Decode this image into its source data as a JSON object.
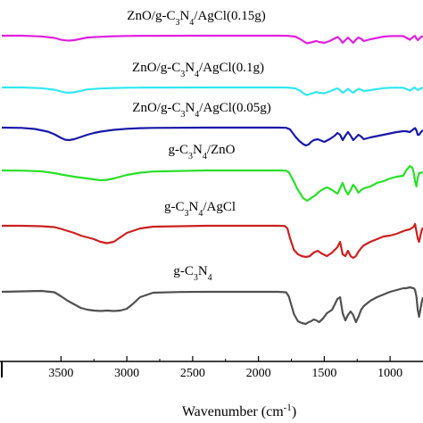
{
  "chart_data": {
    "type": "line",
    "xlabel": "Wavenumber (cm",
    "xlabel_sup": "-1",
    "xlabel_suffix": ")",
    "xlim": [
      3950,
      750
    ],
    "x_reversed": true,
    "x_ticks": [
      3500,
      3000,
      2500,
      2000,
      1500,
      1000
    ],
    "x_tick_labels": [
      "3500",
      "3000",
      "2500",
      "2000",
      "1500",
      "1000"
    ],
    "y_axis": "hidden",
    "grid": false,
    "legend": "none",
    "series": [
      {
        "label_parts": [
          {
            "t": "ZnO/g-C",
            "s": "n"
          },
          {
            "t": "3",
            "s": "sub"
          },
          {
            "t": "N",
            "s": "n"
          },
          {
            "t": "4",
            "s": "sub"
          },
          {
            "t": "/AgCl(0.15g)",
            "s": "n"
          }
        ],
        "color": "#e020e0",
        "offset": 40,
        "x": [
          3950,
          3800,
          3650,
          3550,
          3500,
          3470,
          3440,
          3400,
          3350,
          3300,
          3200,
          3100,
          3000,
          2900,
          2800,
          2400,
          2000,
          1850,
          1780,
          1720,
          1680,
          1650,
          1630,
          1600,
          1560,
          1540,
          1500,
          1460,
          1420,
          1400,
          1380,
          1360,
          1340,
          1320,
          1300,
          1280,
          1260,
          1240,
          1220,
          1200,
          1150,
          1100,
          1050,
          1000,
          950,
          900,
          880,
          850,
          820,
          810,
          800,
          790,
          780,
          760,
          750
        ],
        "values": [
          0,
          0,
          0.8,
          2.5,
          4.5,
          5.2,
          5.5,
          5.0,
          3.5,
          2.0,
          1.2,
          0.6,
          0.3,
          0.15,
          0.1,
          0,
          0,
          0,
          0.1,
          1.0,
          4.0,
          7.0,
          8.5,
          7.5,
          6.0,
          7.0,
          8.0,
          6.0,
          3.0,
          1.5,
          4.0,
          8.0,
          5.0,
          2.0,
          5.0,
          8.0,
          4.5,
          2.0,
          3.5,
          6.0,
          4.0,
          2.5,
          1.0,
          0.5,
          0.3,
          0.5,
          2.0,
          4.5,
          0.8,
          0.3,
          3.0,
          5.0,
          3.5,
          1.0,
          0.8
        ]
      },
      {
        "label_parts": [
          {
            "t": "ZnO/g-C",
            "s": "n"
          },
          {
            "t": "3",
            "s": "sub"
          },
          {
            "t": "N",
            "s": "n"
          },
          {
            "t": "4",
            "s": "sub"
          },
          {
            "t": "/AgCl(0.1g)",
            "s": "n"
          }
        ],
        "color": "#30e8f0",
        "offset": 98,
        "x": [
          3950,
          3800,
          3650,
          3550,
          3500,
          3470,
          3440,
          3400,
          3350,
          3300,
          3200,
          3100,
          3000,
          2900,
          2800,
          2400,
          2000,
          1850,
          1780,
          1720,
          1680,
          1650,
          1630,
          1600,
          1560,
          1540,
          1500,
          1460,
          1420,
          1400,
          1380,
          1360,
          1340,
          1320,
          1300,
          1280,
          1260,
          1240,
          1220,
          1200,
          1150,
          1100,
          1050,
          1000,
          950,
          900,
          880,
          850,
          820,
          810,
          800,
          790,
          780,
          760,
          750
        ],
        "values": [
          0,
          0,
          0.8,
          2.5,
          4.5,
          5.6,
          5.9,
          5.4,
          3.8,
          2.2,
          1.2,
          0.6,
          0.3,
          0.15,
          0.1,
          0,
          0,
          0,
          0.1,
          1.0,
          4.0,
          7.5,
          8.5,
          7.0,
          5.0,
          6.0,
          6.5,
          4.5,
          2.0,
          1.0,
          3.0,
          6.0,
          4.0,
          1.5,
          4.0,
          6.0,
          3.5,
          1.5,
          2.5,
          4.0,
          3.0,
          1.8,
          0.8,
          0.4,
          0.2,
          0.4,
          1.5,
          3.5,
          0.6,
          0.2,
          2.0,
          3.0,
          2.0,
          0.6,
          0.5
        ]
      },
      {
        "label_parts": [
          {
            "t": "ZnO/g-C",
            "s": "n"
          },
          {
            "t": "3",
            "s": "sub"
          },
          {
            "t": "N",
            "s": "n"
          },
          {
            "t": "4",
            "s": "sub"
          },
          {
            "t": "/AgCl(0.05g)",
            "s": "n"
          }
        ],
        "color": "#1818a8",
        "offset": 143,
        "x": [
          3950,
          3800,
          3700,
          3600,
          3550,
          3500,
          3470,
          3440,
          3400,
          3350,
          3300,
          3250,
          3200,
          3100,
          3000,
          2900,
          2800,
          2400,
          2000,
          1850,
          1790,
          1760,
          1720,
          1690,
          1660,
          1640,
          1620,
          1600,
          1580,
          1550,
          1500,
          1460,
          1420,
          1400,
          1380,
          1360,
          1340,
          1320,
          1300,
          1280,
          1260,
          1240,
          1220,
          1200,
          1150,
          1100,
          1050,
          1000,
          950,
          900,
          880,
          850,
          820,
          810,
          800,
          790,
          780,
          760,
          750
        ],
        "values": [
          0,
          0.3,
          1.5,
          4.5,
          7.5,
          11.5,
          13.5,
          14.0,
          13.0,
          10.5,
          8.0,
          6.0,
          4.5,
          2.5,
          1.3,
          0.6,
          0.3,
          0,
          0,
          0,
          0.2,
          2.0,
          10.0,
          15.0,
          18.5,
          20.0,
          19.0,
          16.0,
          14.0,
          13.0,
          16.0,
          13.0,
          9.0,
          6.0,
          8.0,
          14.0,
          9.0,
          5.0,
          9.0,
          14.0,
          11.0,
          8.0,
          10.0,
          13.0,
          11.0,
          9.5,
          8.0,
          6.5,
          5.0,
          4.0,
          4.0,
          5.0,
          1.5,
          0.5,
          3.0,
          8.0,
          8.0,
          4.0,
          3.0
        ]
      },
      {
        "label_parts": [
          {
            "t": "g-C",
            "s": "n"
          },
          {
            "t": "3",
            "s": "sub"
          },
          {
            "t": "N",
            "s": "n"
          },
          {
            "t": "4",
            "s": "sub"
          },
          {
            "t": "/ZnO",
            "s": "n"
          }
        ],
        "color": "#28e028",
        "offset": 191,
        "x": [
          3950,
          3800,
          3650,
          3550,
          3500,
          3400,
          3300,
          3250,
          3200,
          3150,
          3100,
          3050,
          3000,
          2900,
          2800,
          2400,
          2000,
          1850,
          1790,
          1770,
          1740,
          1700,
          1660,
          1630,
          1600,
          1570,
          1540,
          1510,
          1480,
          1450,
          1420,
          1400,
          1380,
          1360,
          1340,
          1320,
          1300,
          1280,
          1260,
          1240,
          1220,
          1200,
          1150,
          1100,
          1050,
          1000,
          950,
          900,
          880,
          850,
          830,
          820,
          810,
          800,
          790,
          780,
          760,
          750
        ],
        "values": [
          0,
          0.2,
          1.0,
          3.0,
          4.5,
          7.0,
          9.0,
          10.0,
          11.0,
          10.5,
          9.0,
          7.0,
          5.0,
          2.5,
          1.2,
          0,
          0,
          0,
          0.2,
          2.0,
          10.0,
          22.0,
          31.0,
          34.0,
          31.0,
          28.0,
          24.0,
          21.0,
          19.0,
          21.0,
          24.0,
          26.0,
          20.0,
          14.0,
          22.0,
          27.0,
          22.0,
          16.0,
          20.0,
          25.0,
          22.0,
          20.0,
          18.0,
          14.0,
          12.0,
          9.0,
          7.0,
          6.0,
          0.5,
          -5.0,
          -3.0,
          3.0,
          12.0,
          18.0,
          8.0,
          3.0,
          2.5,
          2.0
        ]
      },
      {
        "label_parts": [
          {
            "t": "g-C",
            "s": "n"
          },
          {
            "t": "3",
            "s": "sub"
          },
          {
            "t": "N",
            "s": "n"
          },
          {
            "t": "4",
            "s": "sub"
          },
          {
            "t": "/AgCl",
            "s": "n"
          }
        ],
        "color": "#cc2020",
        "offset": 253,
        "x": [
          3950,
          3800,
          3650,
          3550,
          3500,
          3400,
          3350,
          3300,
          3250,
          3200,
          3150,
          3100,
          3050,
          3000,
          2900,
          2800,
          2400,
          2000,
          1850,
          1800,
          1780,
          1760,
          1730,
          1700,
          1670,
          1640,
          1610,
          1580,
          1550,
          1520,
          1480,
          1440,
          1400,
          1380,
          1360,
          1340,
          1320,
          1300,
          1280,
          1260,
          1240,
          1220,
          1200,
          1150,
          1100,
          1050,
          1000,
          950,
          900,
          880,
          850,
          820,
          810,
          800,
          790,
          780,
          760,
          750
        ],
        "values": [
          0,
          0,
          0.5,
          1.5,
          3.5,
          8.0,
          11.0,
          13.0,
          15.0,
          18.0,
          19.5,
          18.0,
          13.0,
          8.0,
          3.0,
          1.0,
          0,
          0,
          0,
          0.2,
          3.0,
          14.0,
          27.0,
          32.0,
          34.0,
          35.0,
          34.0,
          30.0,
          28.0,
          31.0,
          34.0,
          30.0,
          24.0,
          18.0,
          32.0,
          34.0,
          28.0,
          34.0,
          36.0,
          34.0,
          29.0,
          25.0,
          22.0,
          18.0,
          15.0,
          12.0,
          11.0,
          9.0,
          6.0,
          5.0,
          4.0,
          1.0,
          -2.0,
          6.0,
          14.0,
          18.0,
          5.0,
          2.0
        ]
      },
      {
        "label_parts": [
          {
            "t": "g-C",
            "s": "n"
          },
          {
            "t": "3",
            "s": "sub"
          },
          {
            "t": "N",
            "s": "n"
          },
          {
            "t": "4",
            "s": "sub"
          }
        ],
        "color": "#505050",
        "offset": 327,
        "x": [
          3950,
          3800,
          3650,
          3550,
          3500,
          3450,
          3400,
          3350,
          3300,
          3250,
          3200,
          3150,
          3100,
          3050,
          3000,
          2950,
          2900,
          2800,
          2600,
          2400,
          2000,
          1850,
          1790,
          1770,
          1750,
          1730,
          1700,
          1670,
          1640,
          1620,
          1600,
          1580,
          1560,
          1540,
          1510,
          1480,
          1440,
          1420,
          1400,
          1380,
          1360,
          1340,
          1320,
          1300,
          1280,
          1260,
          1240,
          1220,
          1200,
          1150,
          1100,
          1050,
          1000,
          950,
          900,
          880,
          850,
          820,
          810,
          800,
          790,
          780,
          760,
          750
        ],
        "values": [
          0,
          -0.5,
          -1.0,
          0.5,
          5.0,
          10.0,
          14.0,
          18.0,
          20.0,
          21.0,
          21.5,
          21.0,
          21.5,
          21.0,
          19.0,
          13.0,
          6.0,
          1.0,
          0.2,
          0,
          0,
          0,
          0.5,
          5.0,
          15.0,
          25.0,
          33.0,
          35.0,
          36.0,
          34.0,
          33.0,
          31.0,
          32.0,
          34.0,
          30.0,
          24.0,
          20.0,
          14.0,
          8.0,
          6.0,
          24.0,
          32.0,
          26.0,
          22.0,
          26.0,
          34.0,
          28.0,
          20.0,
          16.0,
          10.0,
          6.0,
          3.0,
          0,
          -2.0,
          -4.0,
          -4.0,
          -5.0,
          -4.0,
          -2.0,
          5.0,
          20.0,
          28.0,
          12.0,
          6.0
        ]
      }
    ]
  }
}
